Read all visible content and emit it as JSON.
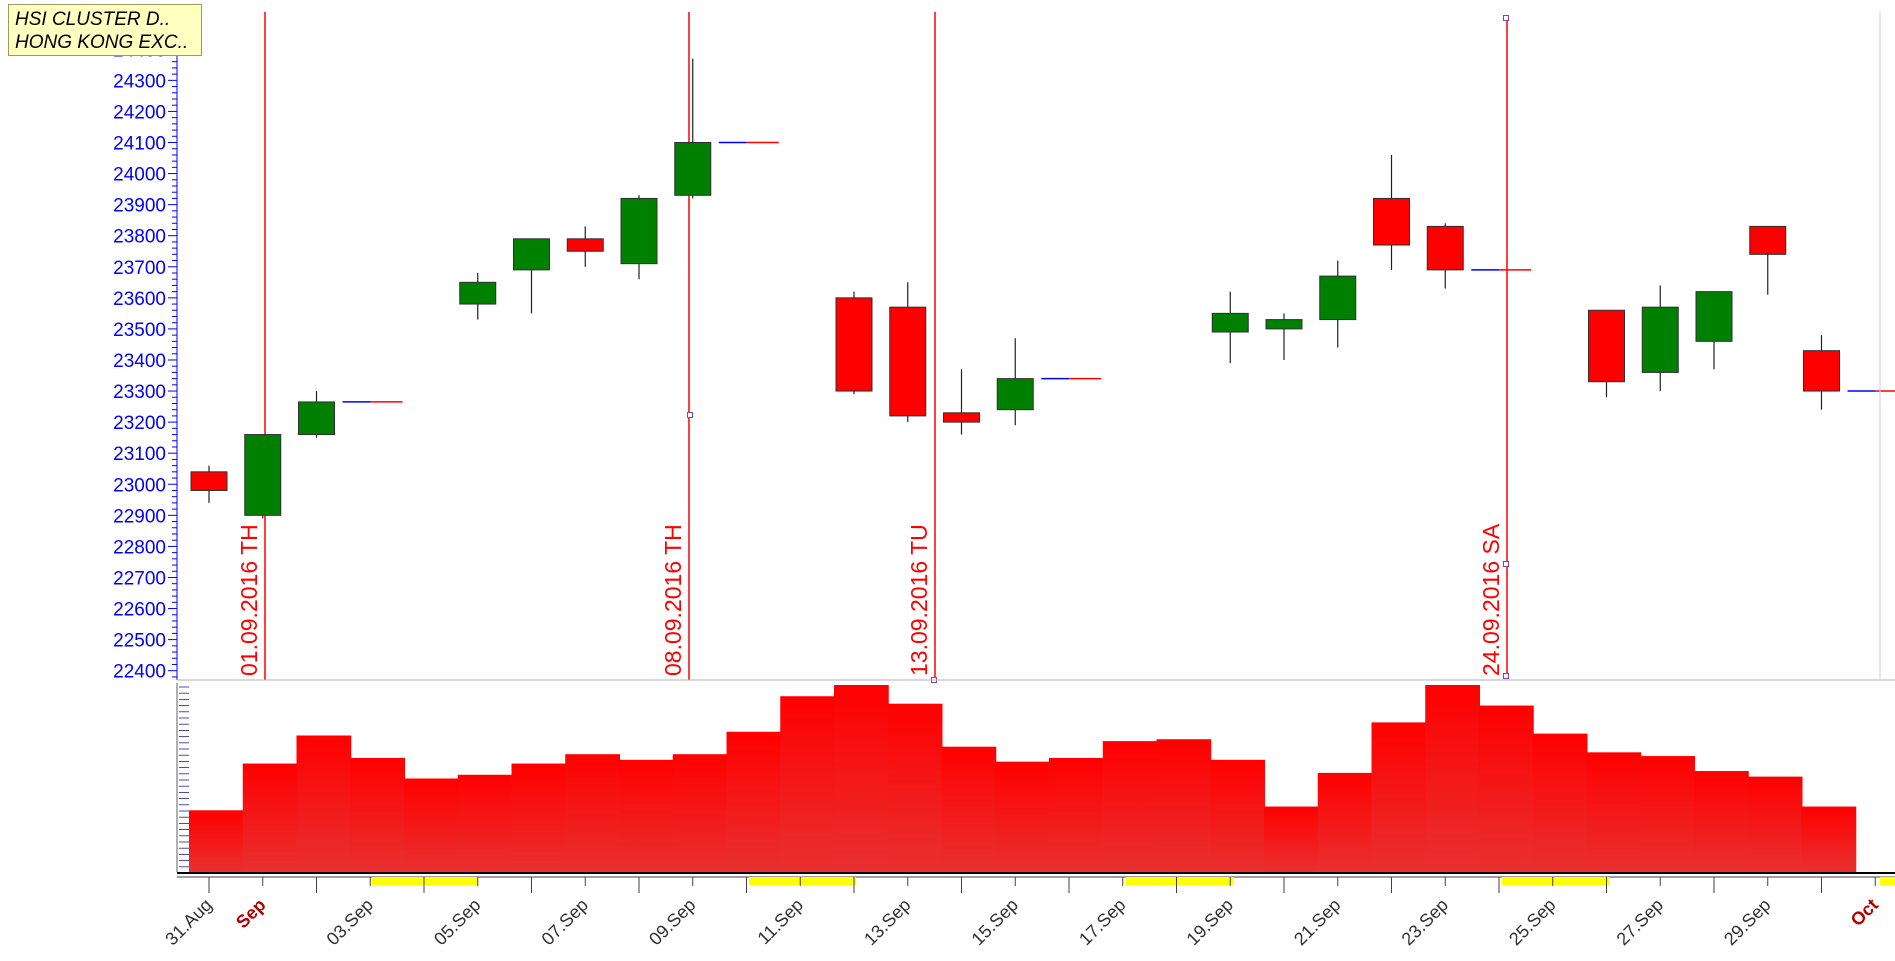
{
  "info_box": {
    "line1": "HSI CLUSTER D..",
    "line2": "HONG KONG EXC.."
  },
  "colors": {
    "up": "#008000",
    "down": "#ff0000",
    "axis_text": "#0000ff",
    "marker": "#ff0000",
    "volume_top": "#ff0000",
    "volume_bottom": "#e83030",
    "weekend_band": "#ffff00",
    "month_label": "#b00000"
  },
  "chart_data": {
    "type": "candlestick",
    "ylim": [
      22370,
      24520
    ],
    "y_ticks": [
      22400,
      22500,
      22600,
      22700,
      22800,
      22900,
      23000,
      23100,
      23200,
      23300,
      23400,
      23500,
      23600,
      23700,
      23800,
      23900,
      24000,
      24100,
      24200,
      24300,
      24400
    ],
    "x_labels": [
      "31.Aug",
      "Sep",
      "03.Sep",
      "05.Sep",
      "07.Sep",
      "09.Sep",
      "11.Sep",
      "13.Sep",
      "15.Sep",
      "17.Sep",
      "19.Sep",
      "21.Sep",
      "23.Sep",
      "25.Sep",
      "27.Sep",
      "29.Sep",
      "Oct"
    ],
    "month_labels": [
      "Sep",
      "Oct"
    ],
    "candles": [
      {
        "date": "31.Aug",
        "open": 23040,
        "high": 23060,
        "low": 22940,
        "close": 22980
      },
      {
        "date": "01.Sep",
        "open": 22900,
        "high": 23160,
        "low": 22890,
        "close": 23160
      },
      {
        "date": "02.Sep",
        "open": 23160,
        "high": 23300,
        "low": 23150,
        "close": 23265
      },
      {
        "date": "05.Sep",
        "open": 23580,
        "high": 23680,
        "low": 23530,
        "close": 23650
      },
      {
        "date": "06.Sep",
        "open": 23690,
        "high": 23790,
        "low": 23550,
        "close": 23790
      },
      {
        "date": "07.Sep",
        "open": 23790,
        "high": 23830,
        "low": 23700,
        "close": 23750
      },
      {
        "date": "08.Sep",
        "open": 23710,
        "high": 23930,
        "low": 23660,
        "close": 23920
      },
      {
        "date": "09.Sep",
        "open": 23930,
        "high": 24370,
        "low": 23920,
        "close": 24100
      },
      {
        "date": "12.Sep",
        "open": 23600,
        "high": 23620,
        "low": 23290,
        "close": 23300
      },
      {
        "date": "13.Sep",
        "open": 23570,
        "high": 23650,
        "low": 23200,
        "close": 23220
      },
      {
        "date": "14.Sep",
        "open": 23230,
        "high": 23370,
        "low": 23160,
        "close": 23200
      },
      {
        "date": "15.Sep",
        "open": 23240,
        "high": 23470,
        "low": 23190,
        "close": 23340
      },
      {
        "date": "19.Sep",
        "open": 23490,
        "high": 23620,
        "low": 23390,
        "close": 23550
      },
      {
        "date": "20.Sep",
        "open": 23500,
        "high": 23550,
        "low": 23400,
        "close": 23530
      },
      {
        "date": "21.Sep",
        "open": 23530,
        "high": 23720,
        "low": 23440,
        "close": 23670
      },
      {
        "date": "22.Sep",
        "open": 23920,
        "high": 24060,
        "low": 23690,
        "close": 23770
      },
      {
        "date": "23.Sep",
        "open": 23830,
        "high": 23840,
        "low": 23630,
        "close": 23690
      },
      {
        "date": "26.Sep",
        "open": 23560,
        "high": 23560,
        "low": 23280,
        "close": 23330
      },
      {
        "date": "27.Sep",
        "open": 23360,
        "high": 23640,
        "low": 23300,
        "close": 23570
      },
      {
        "date": "28.Sep",
        "open": 23460,
        "high": 23620,
        "low": 23370,
        "close": 23620
      },
      {
        "date": "29.Sep",
        "open": 23830,
        "high": 23830,
        "low": 23610,
        "close": 23740
      },
      {
        "date": "30.Sep",
        "open": 23430,
        "high": 23480,
        "low": 23240,
        "close": 23300
      }
    ],
    "weekend_closes": [
      {
        "after": "02.Sep",
        "value": 23265
      },
      {
        "after": "09.Sep",
        "value": 24100
      },
      {
        "after": "15.Sep",
        "value": 23340
      },
      {
        "after": "23.Sep",
        "value": 23690
      },
      {
        "after": "30.Sep",
        "value": 23300
      }
    ],
    "markers": [
      {
        "label": "01.09.2016 TH"
      },
      {
        "label": "08.09.2016 TH"
      },
      {
        "label": "13.09.2016 TU"
      },
      {
        "label": "24.09.2016 SA"
      }
    ],
    "volume_profile": [
      0.33,
      0.58,
      0.73,
      0.61,
      0.5,
      0.52,
      0.58,
      0.63,
      0.6,
      0.63,
      0.75,
      0.94,
      1.0,
      0.9,
      0.67,
      0.59,
      0.61,
      0.7,
      0.71,
      0.6,
      0.35,
      0.53,
      0.8,
      1.0,
      0.89,
      0.74,
      0.64,
      0.62,
      0.54,
      0.51,
      0.35
    ]
  }
}
